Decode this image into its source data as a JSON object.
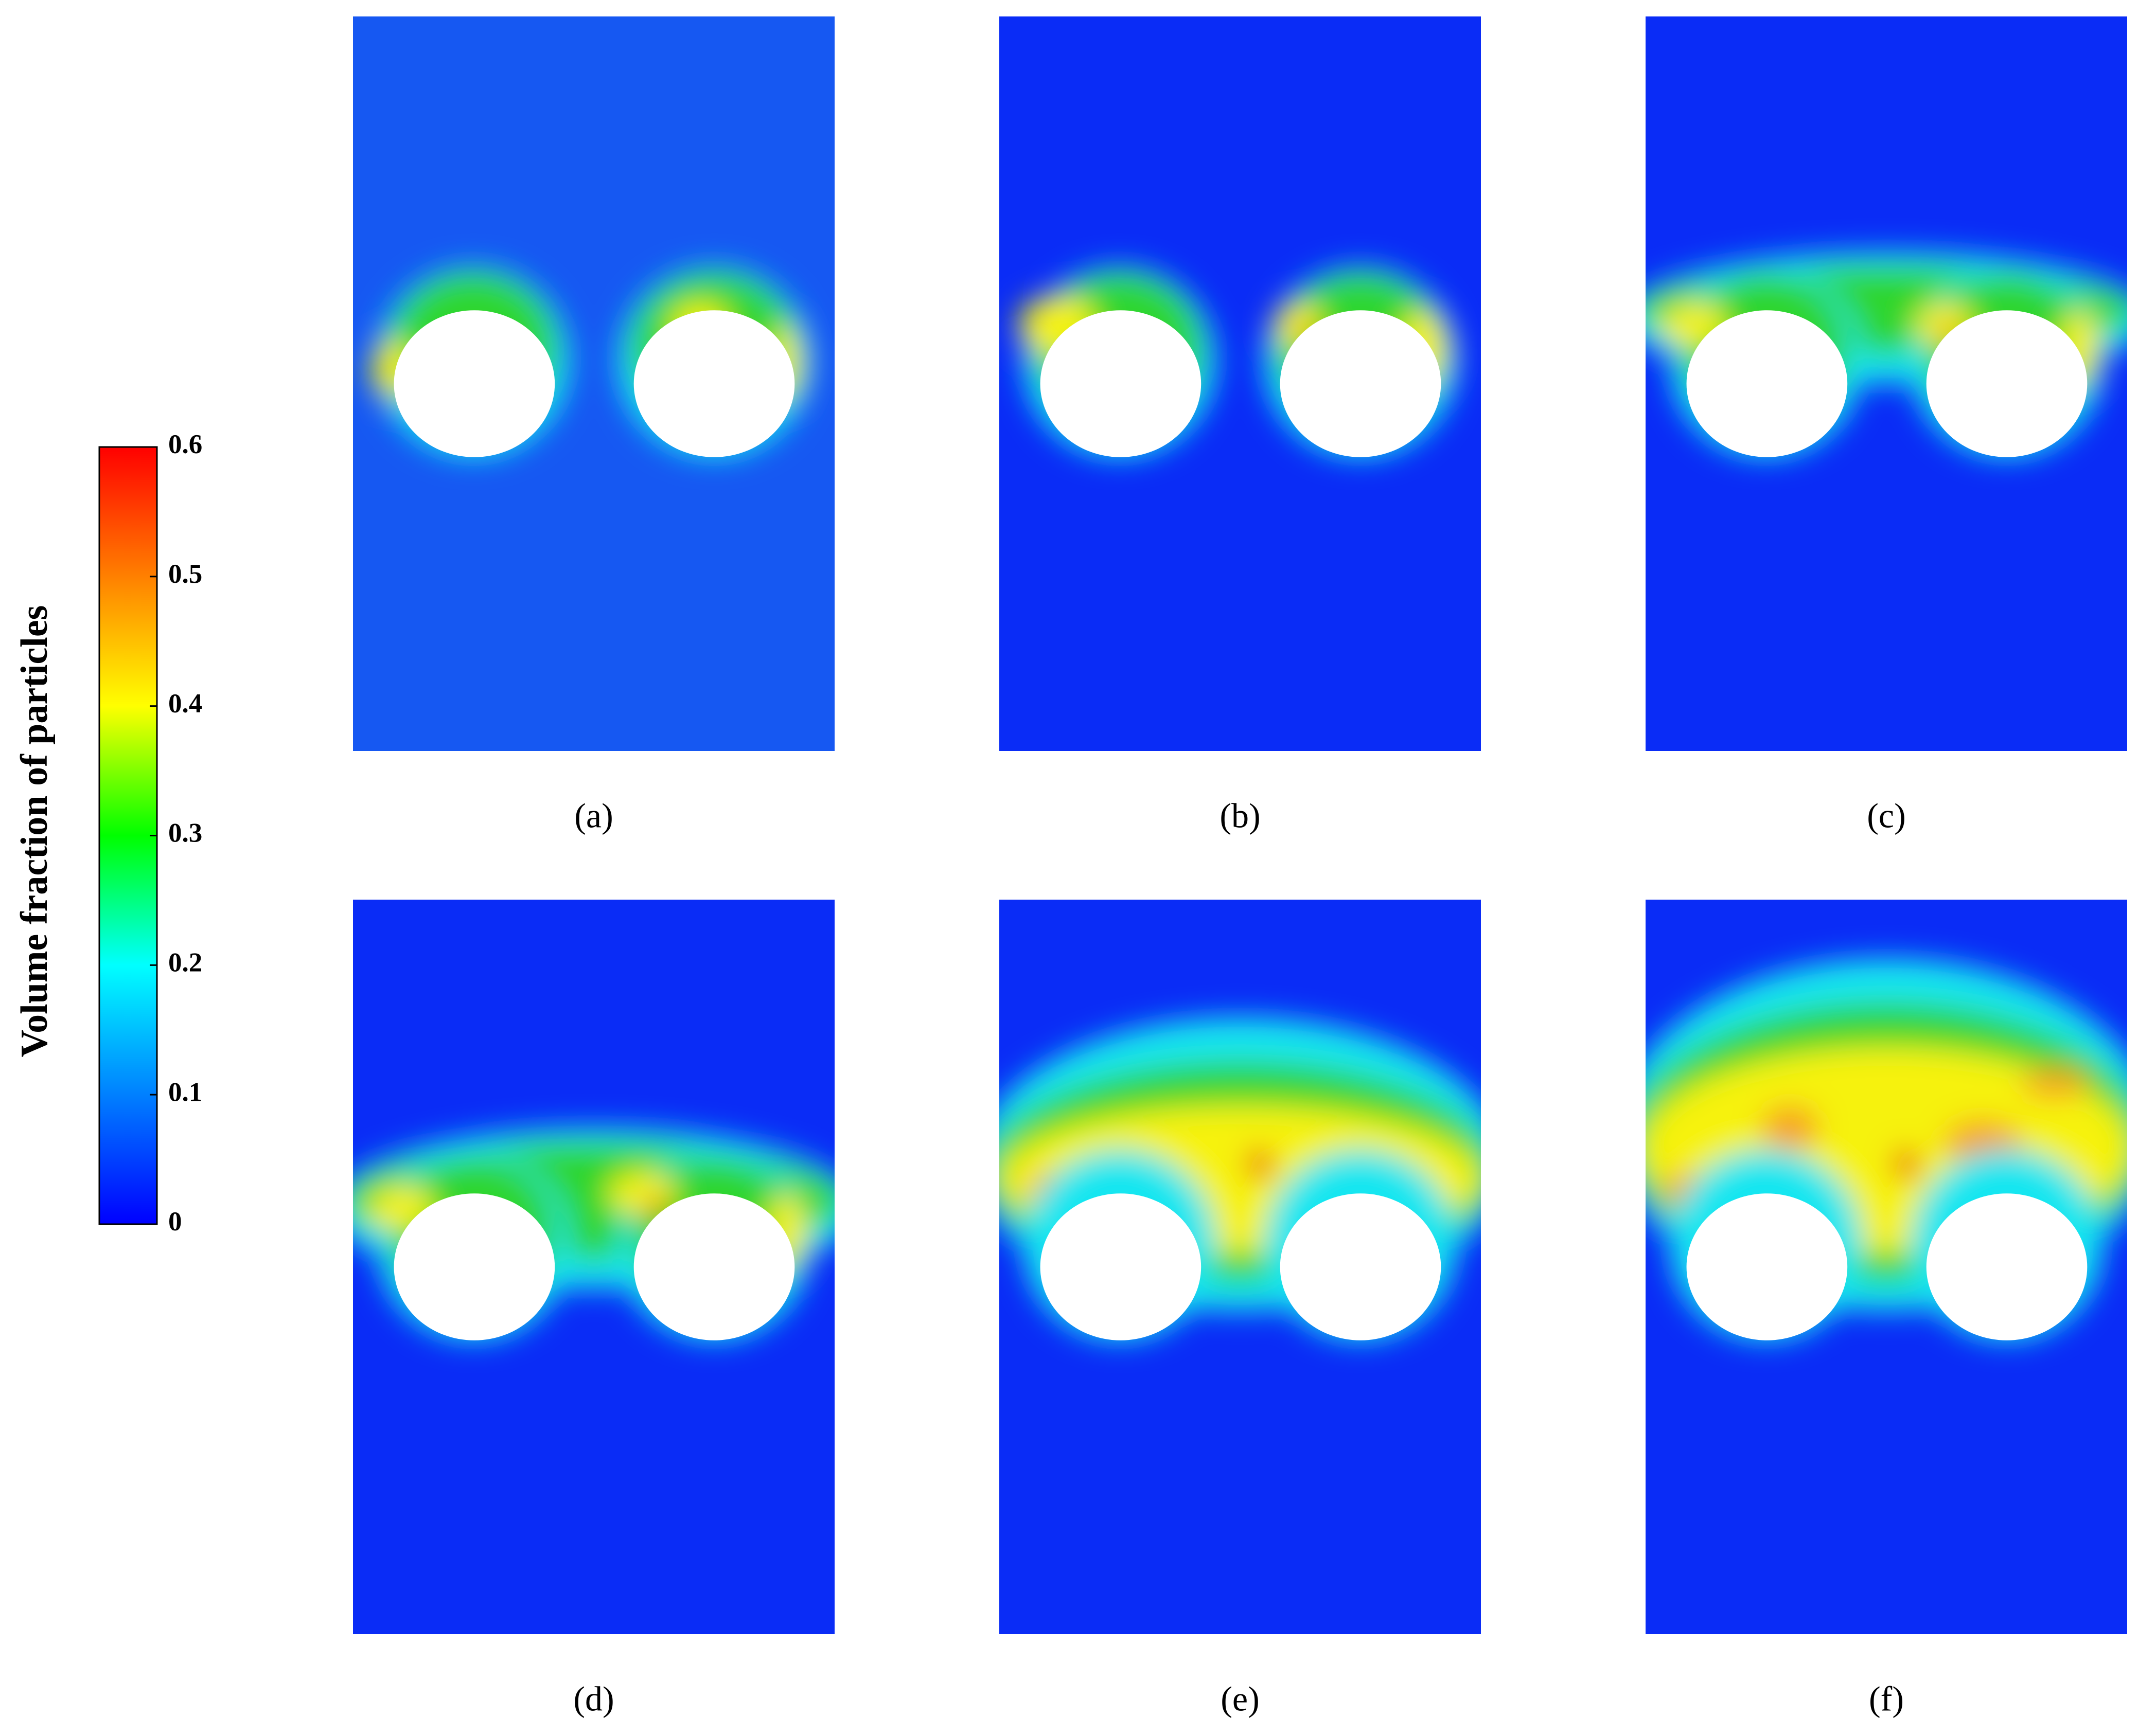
{
  "chart_data": {
    "type": "contour",
    "colorbar": {
      "label": "Volume fraction of particles",
      "clim": [
        0,
        0.6
      ],
      "ticks": [
        0,
        0.1,
        0.2,
        0.3,
        0.4,
        0.5,
        0.6
      ],
      "colormap": [
        "#0000ff",
        "#0080ff",
        "#00ffff",
        "#00ff00",
        "#ffff00",
        "#ff8000",
        "#ff0000"
      ]
    },
    "panels": [
      "(a)",
      "(b)",
      "(c)",
      "(d)",
      "(e)",
      "(f)"
    ]
  }
}
